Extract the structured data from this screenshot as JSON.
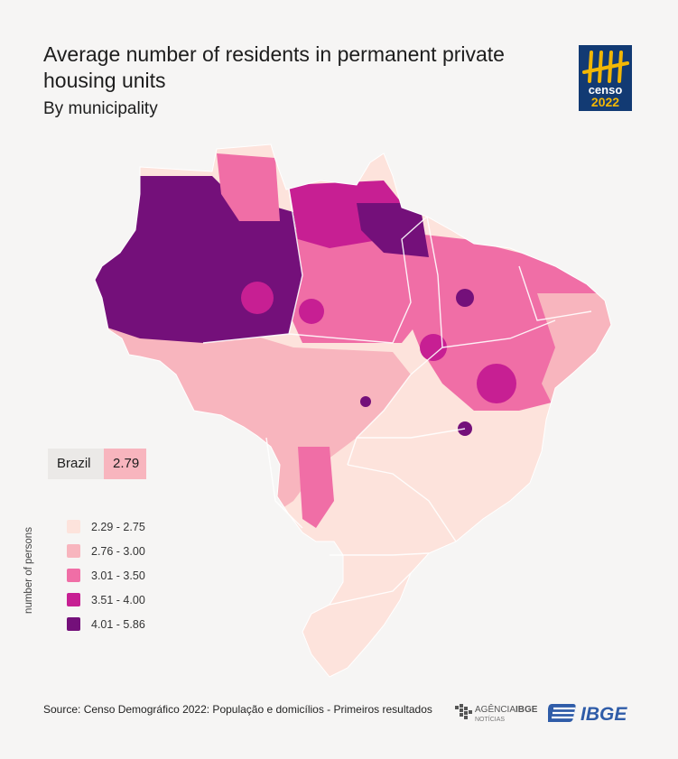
{
  "header": {
    "title": "Average number of residents in permanent private housing units",
    "subtitle": "By municipality"
  },
  "logo": {
    "line1": "censo",
    "line2": "2022",
    "icon": "tally-marks-icon"
  },
  "summary": {
    "label": "Brazil",
    "value": "2.79"
  },
  "legend": {
    "axis_label": "number of persons",
    "items": [
      {
        "label": "2.29 - 2.75",
        "color": "#fde3dc"
      },
      {
        "label": "2.76 - 3.00",
        "color": "#f8b5be"
      },
      {
        "label": "3.01 - 3.50",
        "color": "#f06ea6"
      },
      {
        "label": "3.51 - 4.00",
        "color": "#c71f93"
      },
      {
        "label": "4.01 - 5.86",
        "color": "#74107a"
      }
    ]
  },
  "footer": {
    "source": "Source: Censo Demográfico 2022: População e domicílios - Primeiros resultados",
    "agency_line1": "AGÊNCIA",
    "agency_brand": "IBGE",
    "agency_line2": "NOTÍCIAS",
    "org": "IBGE"
  },
  "colors": {
    "background": "#f6f5f4",
    "logo_blue": "#123a73",
    "logo_gold": "#f2b705",
    "ibge_blue": "#2f5ca8"
  }
}
